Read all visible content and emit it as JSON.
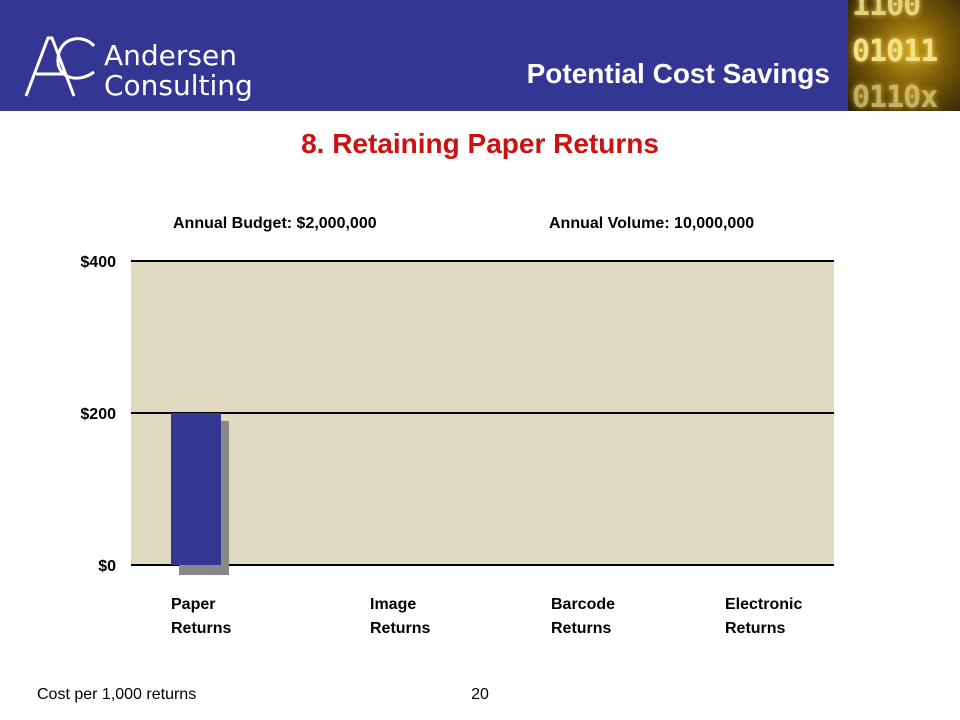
{
  "header": {
    "logo_line1": "Andersen",
    "logo_line2": "Consulting",
    "title": "Potential Cost Savings",
    "background_color": "#343694",
    "binary_art": [
      "1100",
      "01011",
      "0110x"
    ]
  },
  "subtitle": "8. Retaining Paper Returns",
  "annual_budget": "Annual Budget: $2,000,000",
  "annual_volume": "Annual Volume: 10,000,000",
  "footer_note": "Cost per 1,000 returns",
  "page_number": "20",
  "chart_data": {
    "type": "bar",
    "categories": [
      "Paper Returns",
      "Image Returns",
      "Barcode Returns",
      "Electronic Returns"
    ],
    "category_lines": [
      [
        "Paper",
        "Returns"
      ],
      [
        "Image",
        "Returns"
      ],
      [
        "Barcode",
        "Returns"
      ],
      [
        "Electronic",
        "Returns"
      ]
    ],
    "values": [
      200,
      null,
      null,
      null
    ],
    "ylim": [
      0,
      400
    ],
    "yticks": [
      0,
      200,
      400
    ],
    "ytick_labels": [
      "$0",
      "$200",
      "$400"
    ],
    "grid": true,
    "plot_background": "#dfdac0",
    "bar_color": "#343694",
    "shadow_color": "#888888"
  }
}
